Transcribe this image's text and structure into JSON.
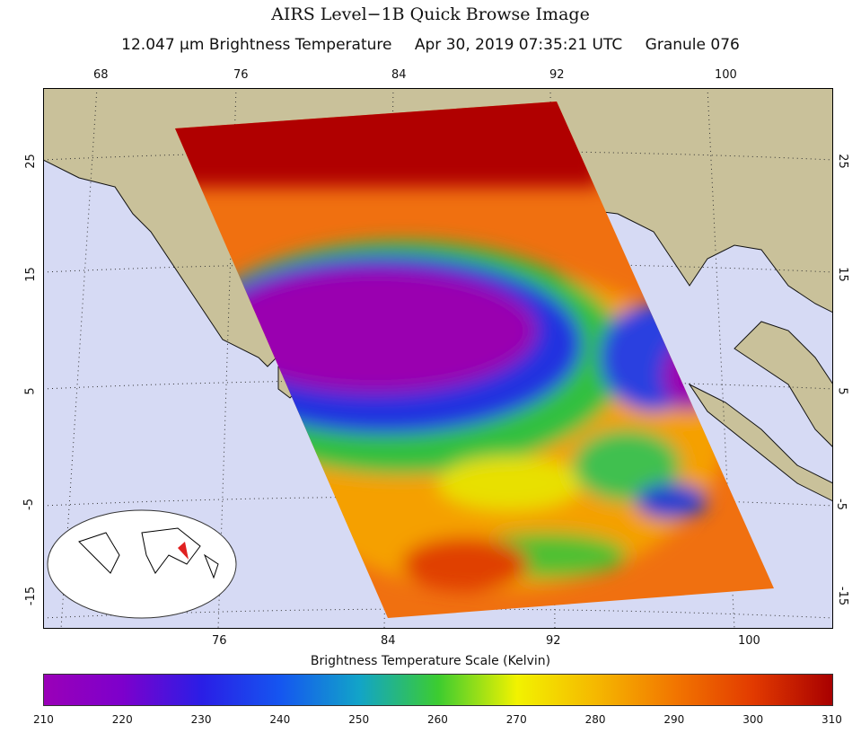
{
  "title": "AIRS Level−1B Quick Browse Image",
  "subtitle": {
    "channel": "12.047 μm Brightness Temperature",
    "datetime": "Apr 30, 2019 07:35:21 UTC",
    "granule": "Granule 076"
  },
  "map": {
    "lon_top": [
      "68",
      "76",
      "84",
      "92",
      "100"
    ],
    "lon_bottom": [
      "76",
      "84",
      "92",
      "100"
    ],
    "lat_left": [
      "25",
      "15",
      "5",
      "-5",
      "-15"
    ],
    "lat_right": [
      "25",
      "15",
      "5",
      "-5",
      "-15"
    ],
    "colors": {
      "land": "#c9c19a",
      "ocean": "#d6daf4",
      "grid": "#333333",
      "locator_marker": "#e02020"
    }
  },
  "colorbar": {
    "title": "Brightness Temperature Scale (Kelvin)",
    "labels": [
      "210",
      "220",
      "230",
      "240",
      "250",
      "260",
      "270",
      "280",
      "290",
      "300",
      "310"
    ],
    "range": [
      210,
      310
    ]
  }
}
